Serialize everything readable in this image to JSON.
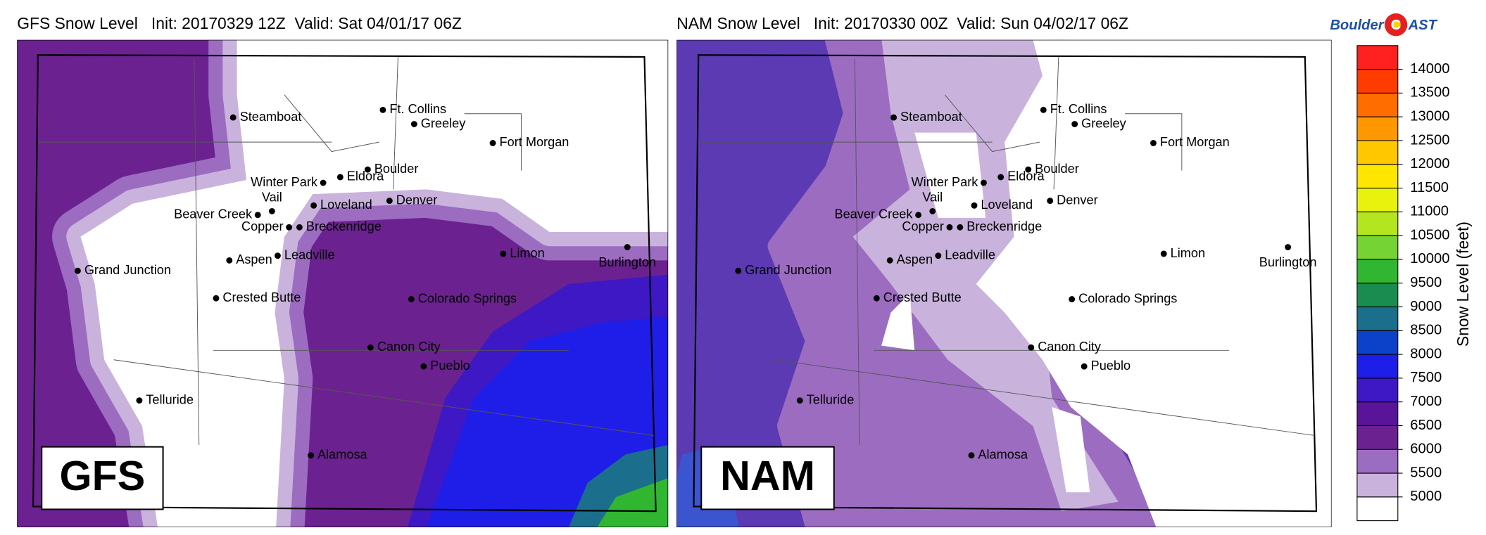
{
  "left_panel": {
    "title": "GFS Snow Level   Init: 20170329 12Z  Valid: Sat 04/01/17 06Z",
    "model": "GFS",
    "cities": [
      "Steamboat",
      "Ft. Collins",
      "Greeley",
      "Fort Morgan",
      "Boulder",
      "Eldora",
      "Winter Park",
      "Vail",
      "Beaver Creek",
      "Loveland",
      "Denver",
      "Copper",
      "Breckenridge",
      "Aspen",
      "Leadville",
      "Grand Junction",
      "Crested Butte",
      "Limon",
      "Burlington",
      "Colorado Springs",
      "Canon City",
      "Pueblo",
      "Telluride",
      "Alamosa"
    ]
  },
  "right_panel": {
    "title": "NAM Snow Level   Init: 20170330 00Z  Valid: Sun 04/02/17 06Z",
    "model": "NAM",
    "cities": [
      "Steamboat",
      "Ft. Collins",
      "Greeley",
      "Fort Morgan",
      "Boulder",
      "Eldora",
      "Winter Park",
      "Vail",
      "Beaver Creek",
      "Loveland",
      "Denver",
      "Copper",
      "Breckenridge",
      "Aspen",
      "Leadville",
      "Grand Junction",
      "Crested Butte",
      "Limon",
      "Burlington",
      "Colorado Springs",
      "Canon City",
      "Pueblo",
      "Telluride",
      "Alamosa"
    ]
  },
  "logo": {
    "left": "Boulder",
    "badge": "C",
    "right": "AST"
  },
  "colorbar": {
    "label": "Snow Level (feet)",
    "ticks": [
      5000,
      5500,
      6000,
      6500,
      7000,
      7500,
      8000,
      8500,
      9000,
      9500,
      10000,
      10500,
      11000,
      11500,
      12000,
      12500,
      13000,
      13500,
      14000
    ],
    "colors": [
      "#ffffff",
      "#c9b3dd",
      "#9c6cc1",
      "#6b2290",
      "#5a1499",
      "#3d18c4",
      "#1f1ee8",
      "#0c42c9",
      "#1b6e8c",
      "#1a8c4f",
      "#30b630",
      "#76d334",
      "#b4e61f",
      "#e8f20c",
      "#ffe600",
      "#ffc700",
      "#ff9800",
      "#ff6d00",
      "#ff3c00",
      "#ff2020"
    ]
  }
}
